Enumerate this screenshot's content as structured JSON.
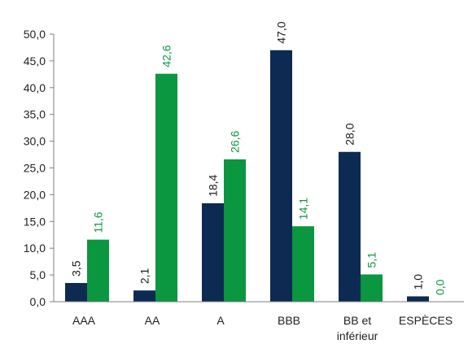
{
  "chart_data": {
    "type": "bar",
    "categories": [
      "AAA",
      "AA",
      "A",
      "BBB",
      "BB et\ninférieur",
      "ESPÈCES"
    ],
    "series": [
      {
        "values": [
          3.5,
          2.1,
          18.4,
          47.0,
          28.0,
          1.0
        ],
        "labels": [
          "3,5",
          "2,1",
          "18,4",
          "47,0",
          "28,0",
          "1,0"
        ],
        "color": "#0d2a52"
      },
      {
        "values": [
          11.6,
          42.6,
          26.6,
          14.1,
          5.1,
          0.0
        ],
        "labels": [
          "11,6",
          "42,6",
          "26,6",
          "14,1",
          "5,1",
          "0,0"
        ],
        "color": "#0b9640"
      }
    ],
    "yticks": [
      "0,0",
      "5,0",
      "10,0",
      "15,0",
      "20,0",
      "25,0",
      "30,0",
      "35,0",
      "40,0",
      "45,0",
      "50,0"
    ],
    "ylim": [
      0,
      50
    ],
    "grid": false,
    "legend": "none",
    "title": "",
    "xlabel": "",
    "ylabel": ""
  }
}
